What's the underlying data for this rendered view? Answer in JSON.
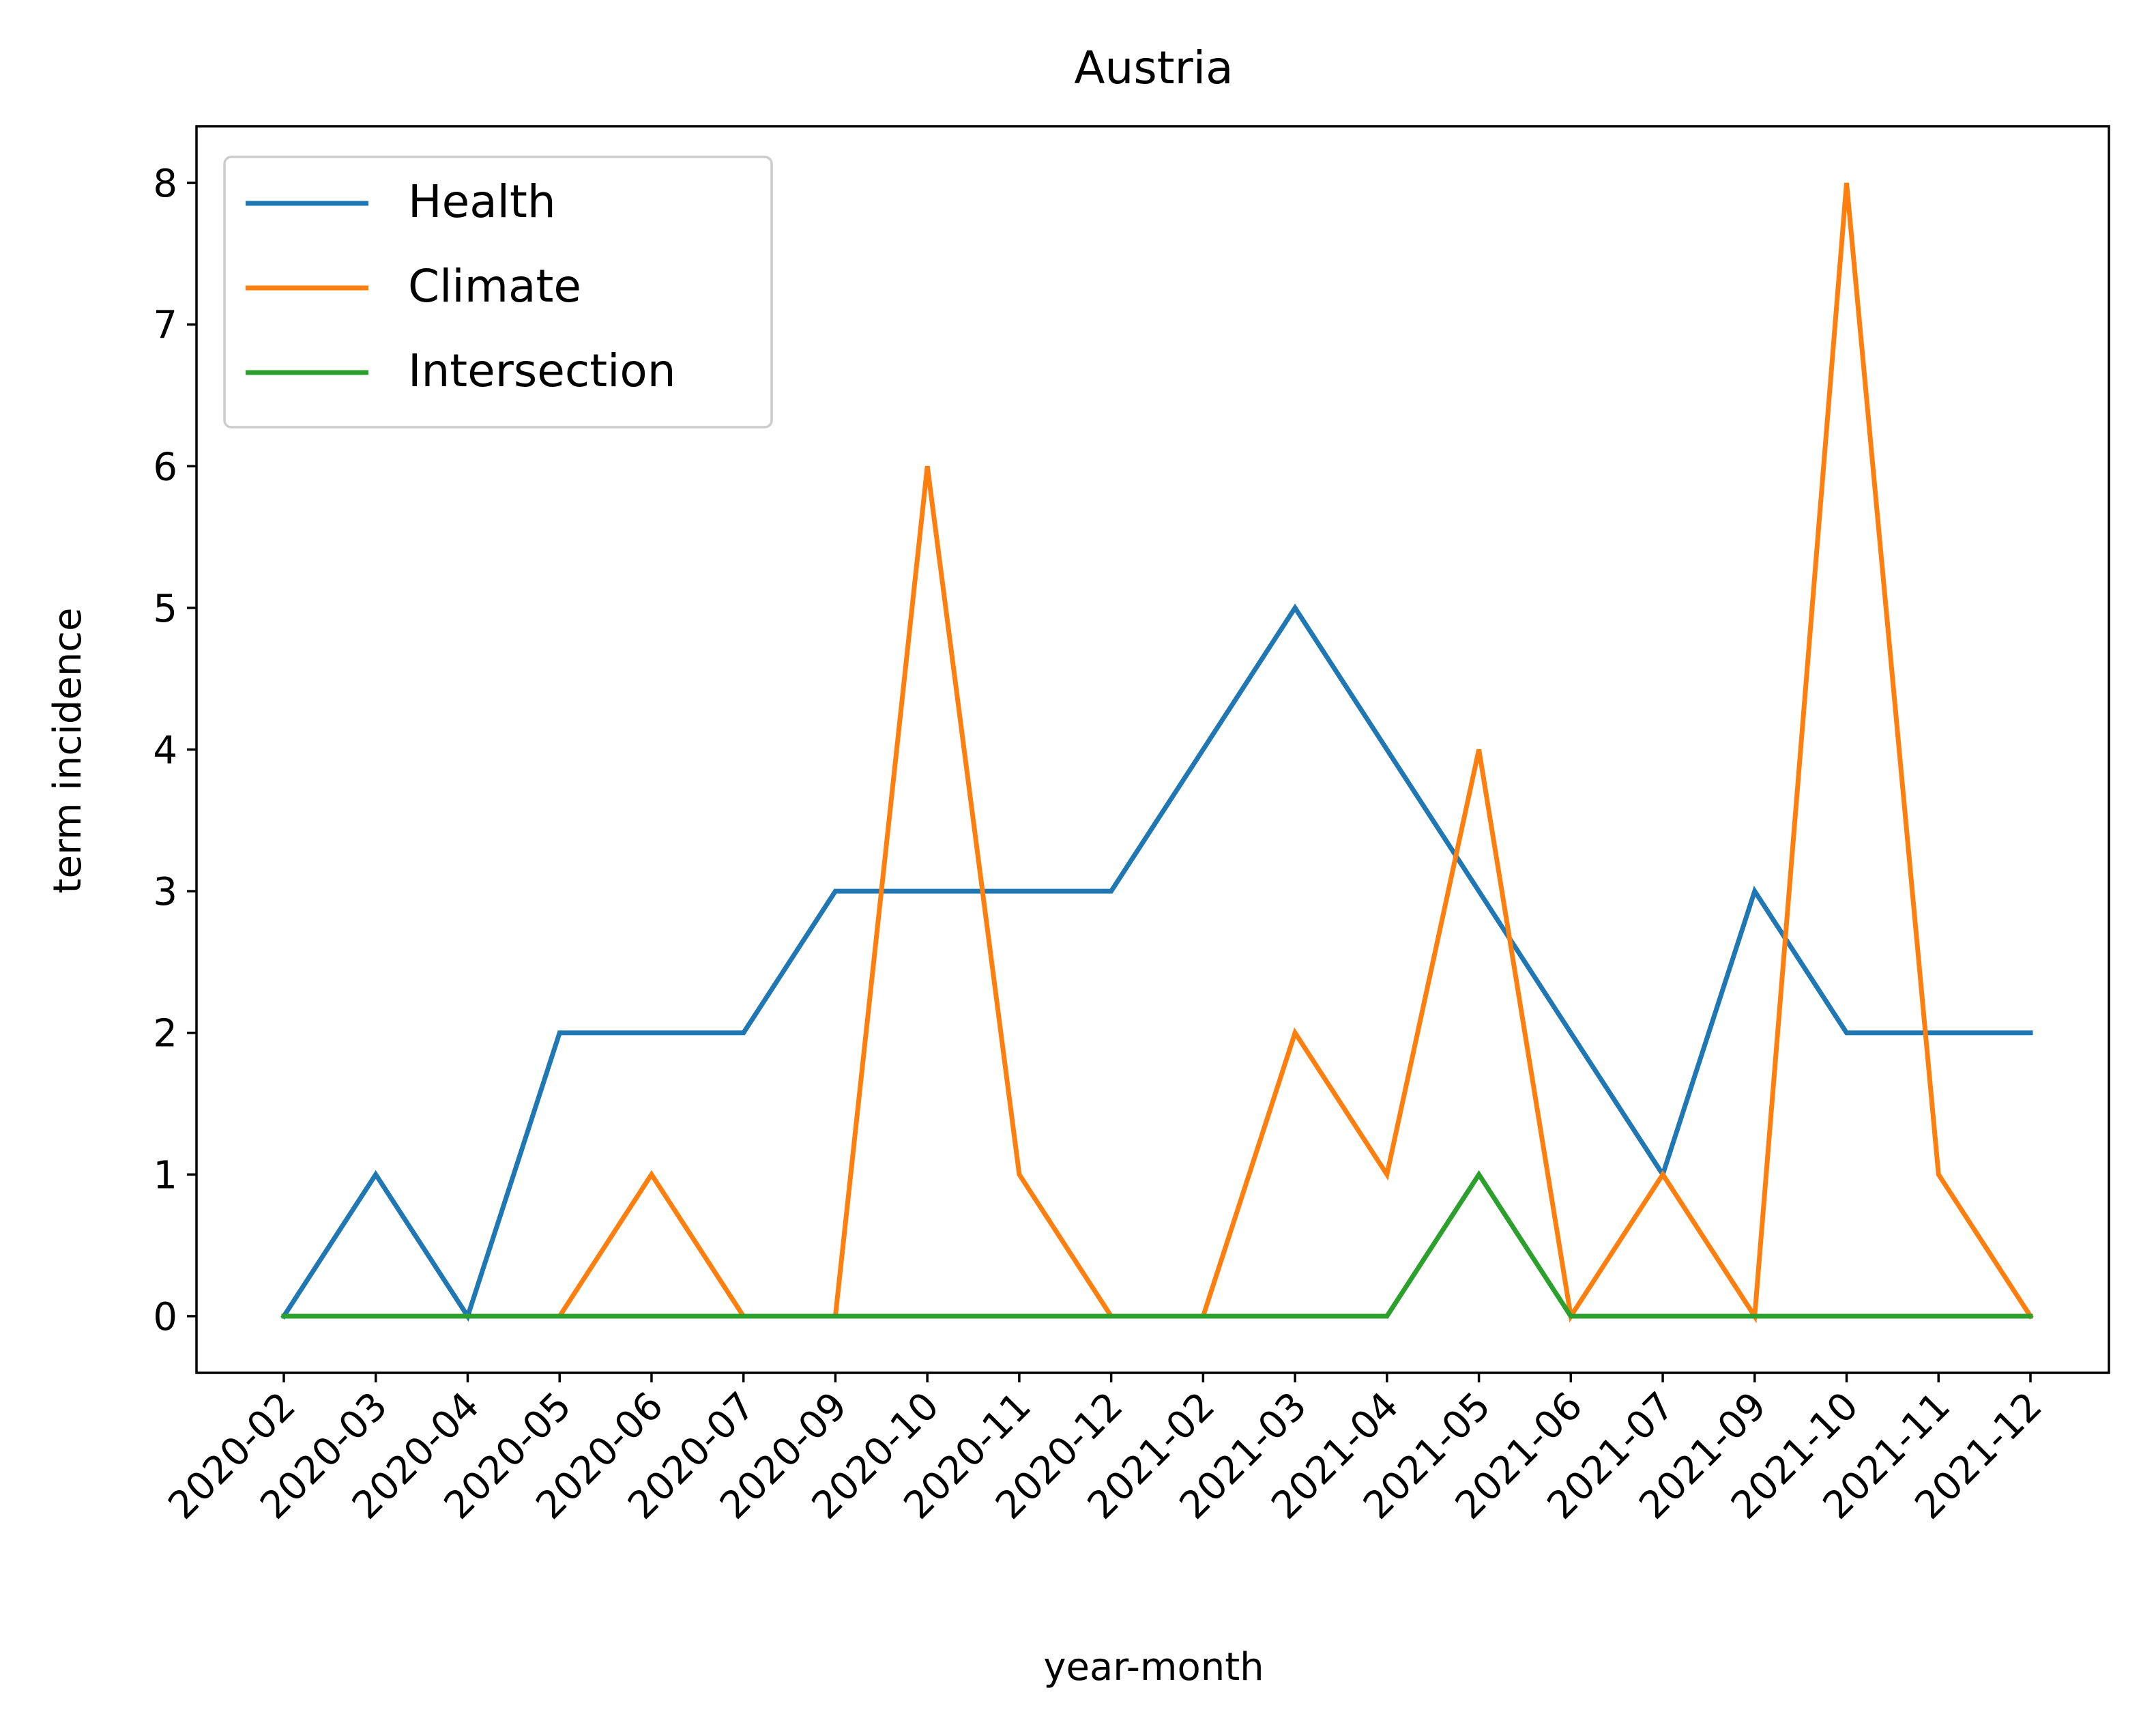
{
  "chart_data": {
    "type": "line",
    "title": "Austria",
    "xlabel": "year-month",
    "ylabel": "term incidence",
    "categories": [
      "2020-02",
      "2020-03",
      "2020-04",
      "2020-05",
      "2020-06",
      "2020-07",
      "2020-09",
      "2020-10",
      "2020-11",
      "2020-12",
      "2021-02",
      "2021-03",
      "2021-04",
      "2021-05",
      "2021-06",
      "2021-07",
      "2021-09",
      "2021-10",
      "2021-11",
      "2021-12"
    ],
    "yticks": [
      "0",
      "1",
      "2",
      "3",
      "4",
      "5",
      "6",
      "7",
      "8"
    ],
    "ylim": [
      -0.4,
      8.4
    ],
    "grid": false,
    "legend_position": "top-left",
    "series": [
      {
        "name": "Health",
        "color": "#1f77b4",
        "values": [
          0,
          1,
          0,
          2,
          2,
          2,
          3,
          3,
          3,
          3,
          4,
          5,
          4,
          3,
          2,
          1,
          3,
          2,
          2,
          2
        ]
      },
      {
        "name": "Climate",
        "color": "#ff7f0e",
        "values": [
          0,
          0,
          0,
          0,
          1,
          0,
          0,
          6,
          1,
          0,
          0,
          2,
          1,
          4,
          0,
          1,
          0,
          8,
          1,
          0
        ]
      },
      {
        "name": "Intersection",
        "color": "#2ca02c",
        "values": [
          0,
          0,
          0,
          0,
          0,
          0,
          0,
          0,
          0,
          0,
          0,
          0,
          0,
          1,
          0,
          0,
          0,
          0,
          0,
          0
        ]
      }
    ]
  }
}
